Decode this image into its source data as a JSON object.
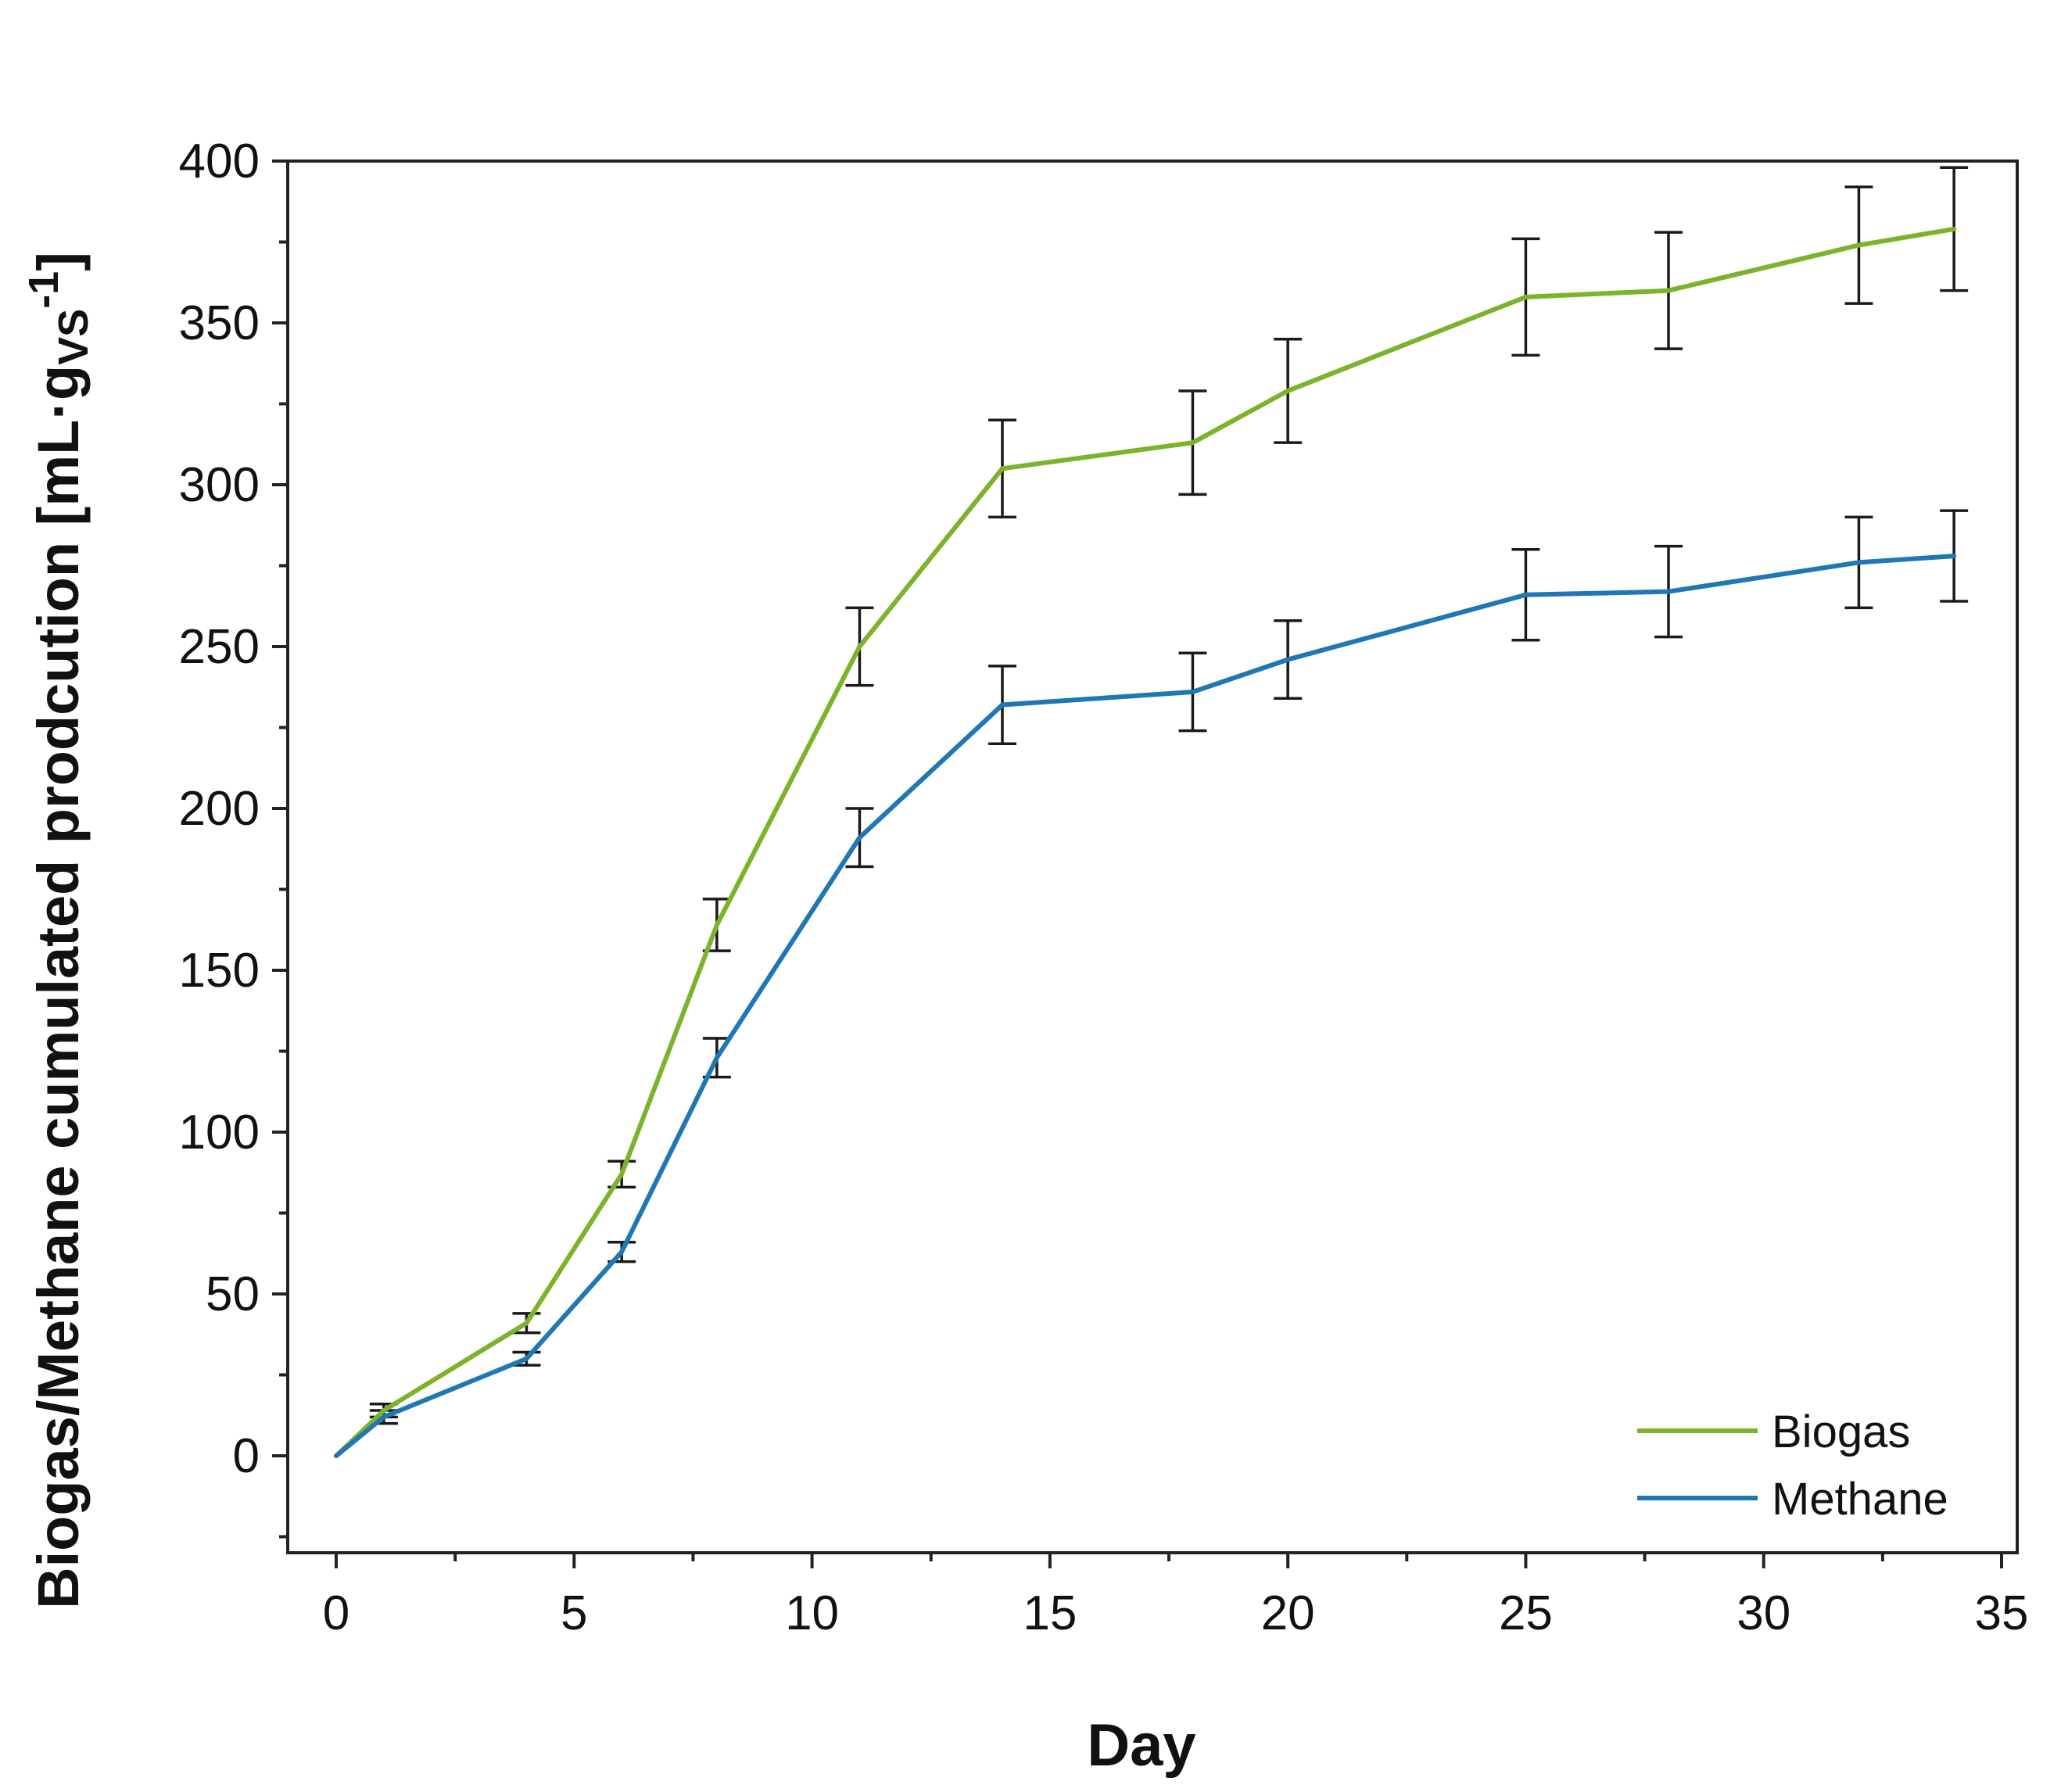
{
  "chart_data": {
    "type": "line",
    "title": "",
    "xlabel": "Day",
    "ylabel": {
      "main": "Biogas/Methane cumulated prodcution [mL·g",
      "subscript": "VS",
      "superscript": "-1",
      "close": "]"
    },
    "xlim": [
      -1,
      35
    ],
    "ylim": [
      -28,
      400
    ],
    "x_ticks": [
      0,
      5,
      10,
      15,
      20,
      25,
      30,
      35
    ],
    "y_ticks": [
      0,
      50,
      100,
      150,
      200,
      250,
      300,
      350,
      400
    ],
    "grid": false,
    "legend_position": "bottom-right",
    "series": [
      {
        "name": "Biogas",
        "color": "#7cb32a",
        "x": [
          0,
          1,
          4,
          6,
          8,
          11,
          14,
          18,
          20,
          25,
          28,
          32,
          34
        ],
        "y": [
          0,
          14,
          41,
          87,
          164,
          250,
          305,
          313,
          329,
          358,
          360,
          374,
          379
        ],
        "err": [
          0,
          2,
          3,
          4,
          8,
          12,
          15,
          16,
          16,
          18,
          18,
          18,
          19
        ]
      },
      {
        "name": "Methane",
        "color": "#1f77b4",
        "x": [
          0,
          1,
          4,
          6,
          8,
          11,
          14,
          18,
          20,
          25,
          28,
          32,
          34
        ],
        "y": [
          0,
          12,
          30,
          63,
          123,
          191,
          232,
          236,
          246,
          266,
          267,
          276,
          278
        ],
        "err": [
          0,
          2,
          2,
          3,
          6,
          9,
          12,
          12,
          12,
          14,
          14,
          14,
          14
        ]
      }
    ]
  }
}
